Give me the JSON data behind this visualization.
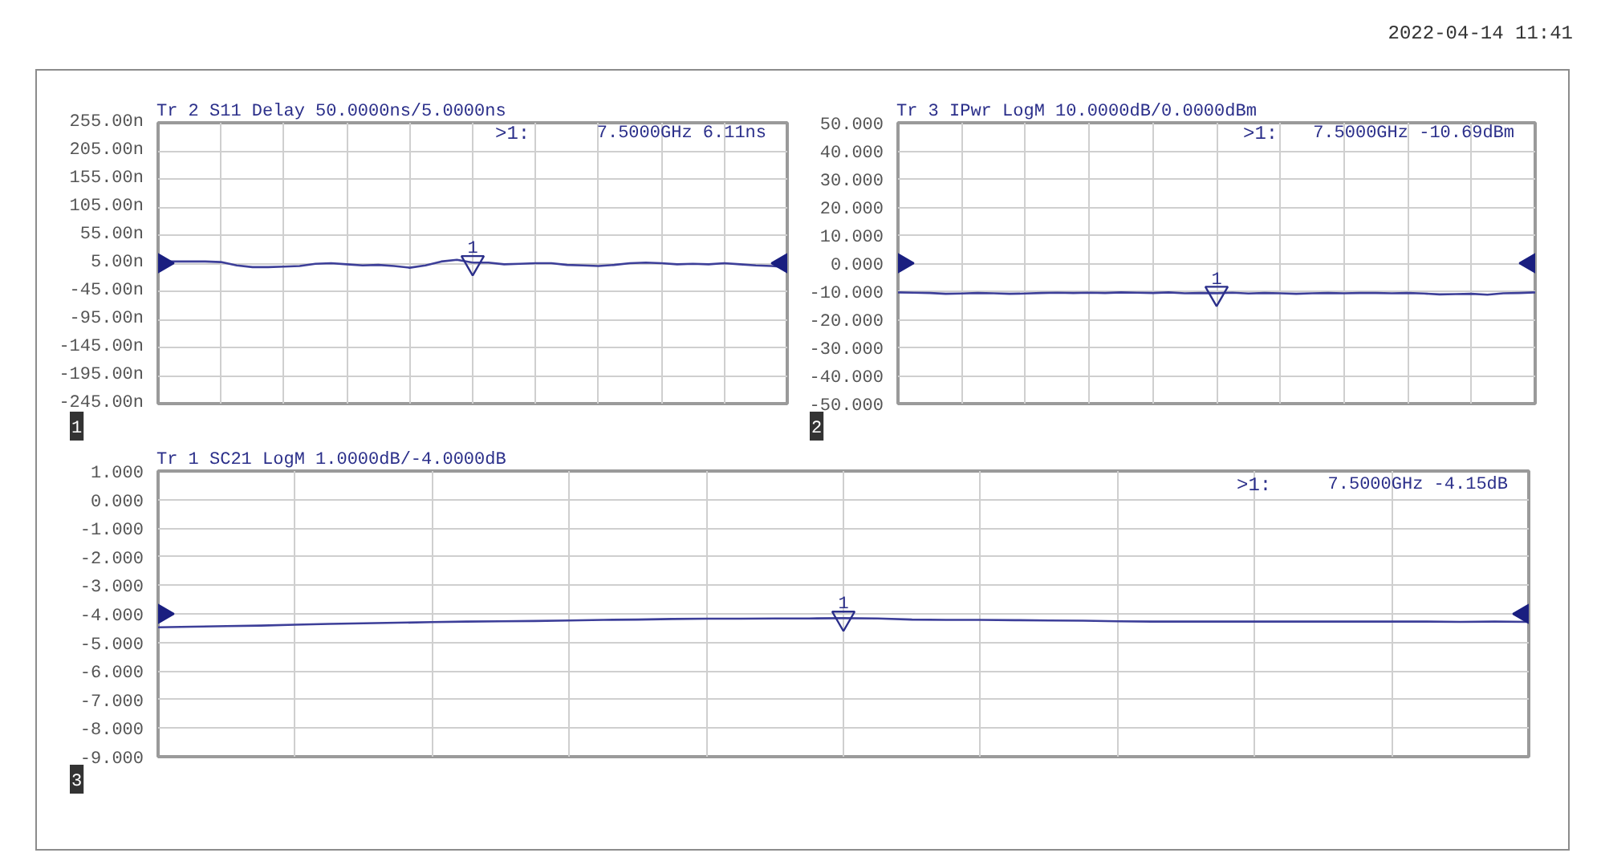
{
  "chart_data": [
    {
      "type": "line",
      "title": "Tr 2 S11 Delay 50.0000ns/5.0000ns",
      "categories": [
        null,
        null,
        null,
        null,
        null,
        null,
        null,
        null,
        null,
        null,
        null,
        null,
        null,
        null,
        null,
        null,
        null,
        null,
        null,
        null,
        null,
        null,
        null,
        null,
        null,
        null,
        null,
        null,
        null,
        null,
        null,
        null,
        null,
        null,
        null,
        null,
        null,
        null,
        null,
        null,
        null
      ],
      "series": [
        {
          "color": "#3d3f99",
          "values": [
            8,
            8,
            8,
            8,
            7,
            1,
            -2,
            -2,
            -1,
            0,
            4,
            5,
            3,
            1,
            2,
            0,
            -3,
            1,
            8,
            11,
            6.11,
            6,
            3,
            4,
            5,
            5,
            2,
            1,
            0,
            2,
            5,
            6,
            5,
            3,
            4,
            3,
            5,
            3,
            1,
            0,
            -2
          ]
        },
        {
          "type": "scatter",
          "name": "1",
          "marker": "triangle",
          "color": "#2b2f8a",
          "values": [
            null,
            null,
            null,
            null,
            null,
            null,
            null,
            null,
            null,
            null,
            null,
            null,
            null,
            null,
            null,
            null,
            null,
            null,
            null,
            null,
            6.11,
            null,
            null,
            null,
            null,
            null,
            null,
            null,
            null,
            null,
            null,
            null,
            null,
            null,
            null,
            null,
            null,
            null,
            null,
            null,
            null
          ]
        },
        {
          "type": "scatter",
          "marker": "triangle",
          "color": "#1a1f80",
          "values": [
            5,
            null,
            null,
            null,
            null,
            null,
            null,
            null,
            null,
            null,
            null,
            null,
            null,
            null,
            null,
            null,
            null,
            null,
            null,
            null,
            null,
            null,
            null,
            null,
            null,
            null,
            null,
            null,
            null,
            null,
            null,
            null,
            null,
            null,
            null,
            null,
            null,
            null,
            null,
            null,
            5
          ]
        }
      ],
      "ylim": [
        -245,
        255
      ],
      "yticks": [
        {
          "value": 255,
          "label": "255.00n"
        },
        {
          "value": 205,
          "label": "205.00n"
        },
        {
          "value": 155,
          "label": "155.00n"
        },
        {
          "value": 105,
          "label": "105.00n"
        },
        {
          "value": 55,
          "label": "55.00n"
        },
        {
          "value": 5,
          "label": "5.00n"
        },
        {
          "value": -45,
          "label": "-45.00n"
        },
        {
          "value": -95,
          "label": "-95.00n"
        },
        {
          "value": -145,
          "label": "-145.00n"
        },
        {
          "value": -195,
          "label": "-195.00n"
        },
        {
          "value": -245,
          "label": "-245.00n"
        }
      ],
      "grid": true,
      "tick_labels": "y",
      "annotations": [
        ">1:",
        "7.5000GHz 6.11ns",
        "1"
      ]
    },
    {
      "type": "line",
      "title": "Tr 3 IPwr LogM 10.0000dB/0.0000dBm",
      "categories": [
        null,
        null,
        null,
        null,
        null,
        null,
        null,
        null,
        null,
        null,
        null,
        null,
        null,
        null,
        null,
        null,
        null,
        null,
        null,
        null,
        null,
        null,
        null,
        null,
        null,
        null,
        null,
        null,
        null,
        null,
        null,
        null,
        null,
        null,
        null,
        null,
        null,
        null,
        null,
        null,
        null
      ],
      "series": [
        {
          "color": "#3d3f99",
          "values": [
            -10.4,
            -10.5,
            -10.6,
            -10.9,
            -10.8,
            -10.6,
            -10.7,
            -10.9,
            -10.8,
            -10.6,
            -10.5,
            -10.6,
            -10.5,
            -10.6,
            -10.4,
            -10.5,
            -10.6,
            -10.4,
            -10.7,
            -10.6,
            -10.69,
            -10.5,
            -10.8,
            -10.6,
            -10.7,
            -10.9,
            -10.7,
            -10.6,
            -10.7,
            -10.6,
            -10.6,
            -10.7,
            -10.6,
            -10.8,
            -11.1,
            -11,
            -10.9,
            -11.2,
            -10.7,
            -10.6,
            -10.4
          ]
        },
        {
          "type": "scatter",
          "name": "1",
          "marker": "triangle",
          "color": "#2b2f8a",
          "values": [
            null,
            null,
            null,
            null,
            null,
            null,
            null,
            null,
            null,
            null,
            null,
            null,
            null,
            null,
            null,
            null,
            null,
            null,
            null,
            null,
            -10.69,
            null,
            null,
            null,
            null,
            null,
            null,
            null,
            null,
            null,
            null,
            null,
            null,
            null,
            null,
            null,
            null,
            null,
            null,
            null,
            null
          ]
        },
        {
          "type": "scatter",
          "marker": "triangle",
          "color": "#1a1f80",
          "values": [
            0,
            null,
            null,
            null,
            null,
            null,
            null,
            null,
            null,
            null,
            null,
            null,
            null,
            null,
            null,
            null,
            null,
            null,
            null,
            null,
            null,
            null,
            null,
            null,
            null,
            null,
            null,
            null,
            null,
            null,
            null,
            null,
            null,
            null,
            null,
            null,
            null,
            null,
            null,
            null,
            0
          ]
        }
      ],
      "ylim": [
        -50,
        50
      ],
      "yticks": [
        {
          "value": 50,
          "label": "50.000"
        },
        {
          "value": 40,
          "label": "40.000"
        },
        {
          "value": 30,
          "label": "30.000"
        },
        {
          "value": 20,
          "label": "20.000"
        },
        {
          "value": 10,
          "label": "10.000"
        },
        {
          "value": 0,
          "label": "0.000"
        },
        {
          "value": -10,
          "label": "-10.000"
        },
        {
          "value": -20,
          "label": "-20.000"
        },
        {
          "value": -30,
          "label": "-30.000"
        },
        {
          "value": -40,
          "label": "-40.000"
        },
        {
          "value": -50,
          "label": "-50.000"
        }
      ],
      "grid": true,
      "tick_labels": "y",
      "annotations": [
        ">1:",
        "7.5000GHz -10.69dBm",
        "2",
        "2022-04-14 11:41"
      ]
    },
    {
      "type": "line",
      "title": "Tr 1 SC21 LogM 1.0000dB/-4.0000dB",
      "categories": [
        null,
        null,
        null,
        null,
        null,
        null,
        null,
        null,
        null,
        null,
        null,
        null,
        null,
        null,
        null,
        null,
        null,
        null,
        null,
        null,
        null,
        null,
        null,
        null,
        null,
        null,
        null,
        null,
        null,
        null,
        null,
        null,
        null,
        null,
        null,
        null,
        null,
        null,
        null,
        null,
        null
      ],
      "series": [
        {
          "color": "#3d3f99",
          "values": [
            -4.47,
            -4.45,
            -4.43,
            -4.41,
            -4.38,
            -4.35,
            -4.33,
            -4.31,
            -4.29,
            -4.27,
            -4.26,
            -4.25,
            -4.23,
            -4.21,
            -4.2,
            -4.18,
            -4.17,
            -4.17,
            -4.16,
            -4.16,
            -4.15,
            -4.16,
            -4.2,
            -4.21,
            -4.21,
            -4.22,
            -4.23,
            -4.24,
            -4.26,
            -4.27,
            -4.27,
            -4.27,
            -4.27,
            -4.27,
            -4.27,
            -4.27,
            -4.27,
            -4.27,
            -4.28,
            -4.27,
            -4.28
          ]
        },
        {
          "type": "scatter",
          "name": "1",
          "marker": "triangle",
          "color": "#2b2f8a",
          "values": [
            null,
            null,
            null,
            null,
            null,
            null,
            null,
            null,
            null,
            null,
            null,
            null,
            null,
            null,
            null,
            null,
            null,
            null,
            null,
            null,
            -4.15,
            null,
            null,
            null,
            null,
            null,
            null,
            null,
            null,
            null,
            null,
            null,
            null,
            null,
            null,
            null,
            null,
            null,
            null,
            null,
            null
          ]
        },
        {
          "type": "scatter",
          "marker": "triangle",
          "color": "#1a1f80",
          "values": [
            -4,
            null,
            null,
            null,
            null,
            null,
            null,
            null,
            null,
            null,
            null,
            null,
            null,
            null,
            null,
            null,
            null,
            null,
            null,
            null,
            null,
            null,
            null,
            null,
            null,
            null,
            null,
            null,
            null,
            null,
            null,
            null,
            null,
            null,
            null,
            null,
            null,
            null,
            null,
            null,
            -4
          ]
        }
      ],
      "ylim": [
        -9,
        1
      ],
      "yticks": [
        {
          "value": 1,
          "label": "1.000"
        },
        {
          "value": 0,
          "label": "0.000"
        },
        {
          "value": -1,
          "label": "-1.000"
        },
        {
          "value": -2,
          "label": "-2.000"
        },
        {
          "value": -3,
          "label": "-3.000"
        },
        {
          "value": -4,
          "label": "-4.000"
        },
        {
          "value": -5,
          "label": "-5.000"
        },
        {
          "value": -6,
          "label": "-6.000"
        },
        {
          "value": -7,
          "label": "-7.000"
        },
        {
          "value": -8,
          "label": "-8.000"
        },
        {
          "value": -9,
          "label": "-9.000"
        }
      ],
      "grid": true,
      "tick_labels": "y",
      "annotations": [
        ">1:",
        "7.5000GHz -4.15dB",
        "3"
      ]
    }
  ]
}
